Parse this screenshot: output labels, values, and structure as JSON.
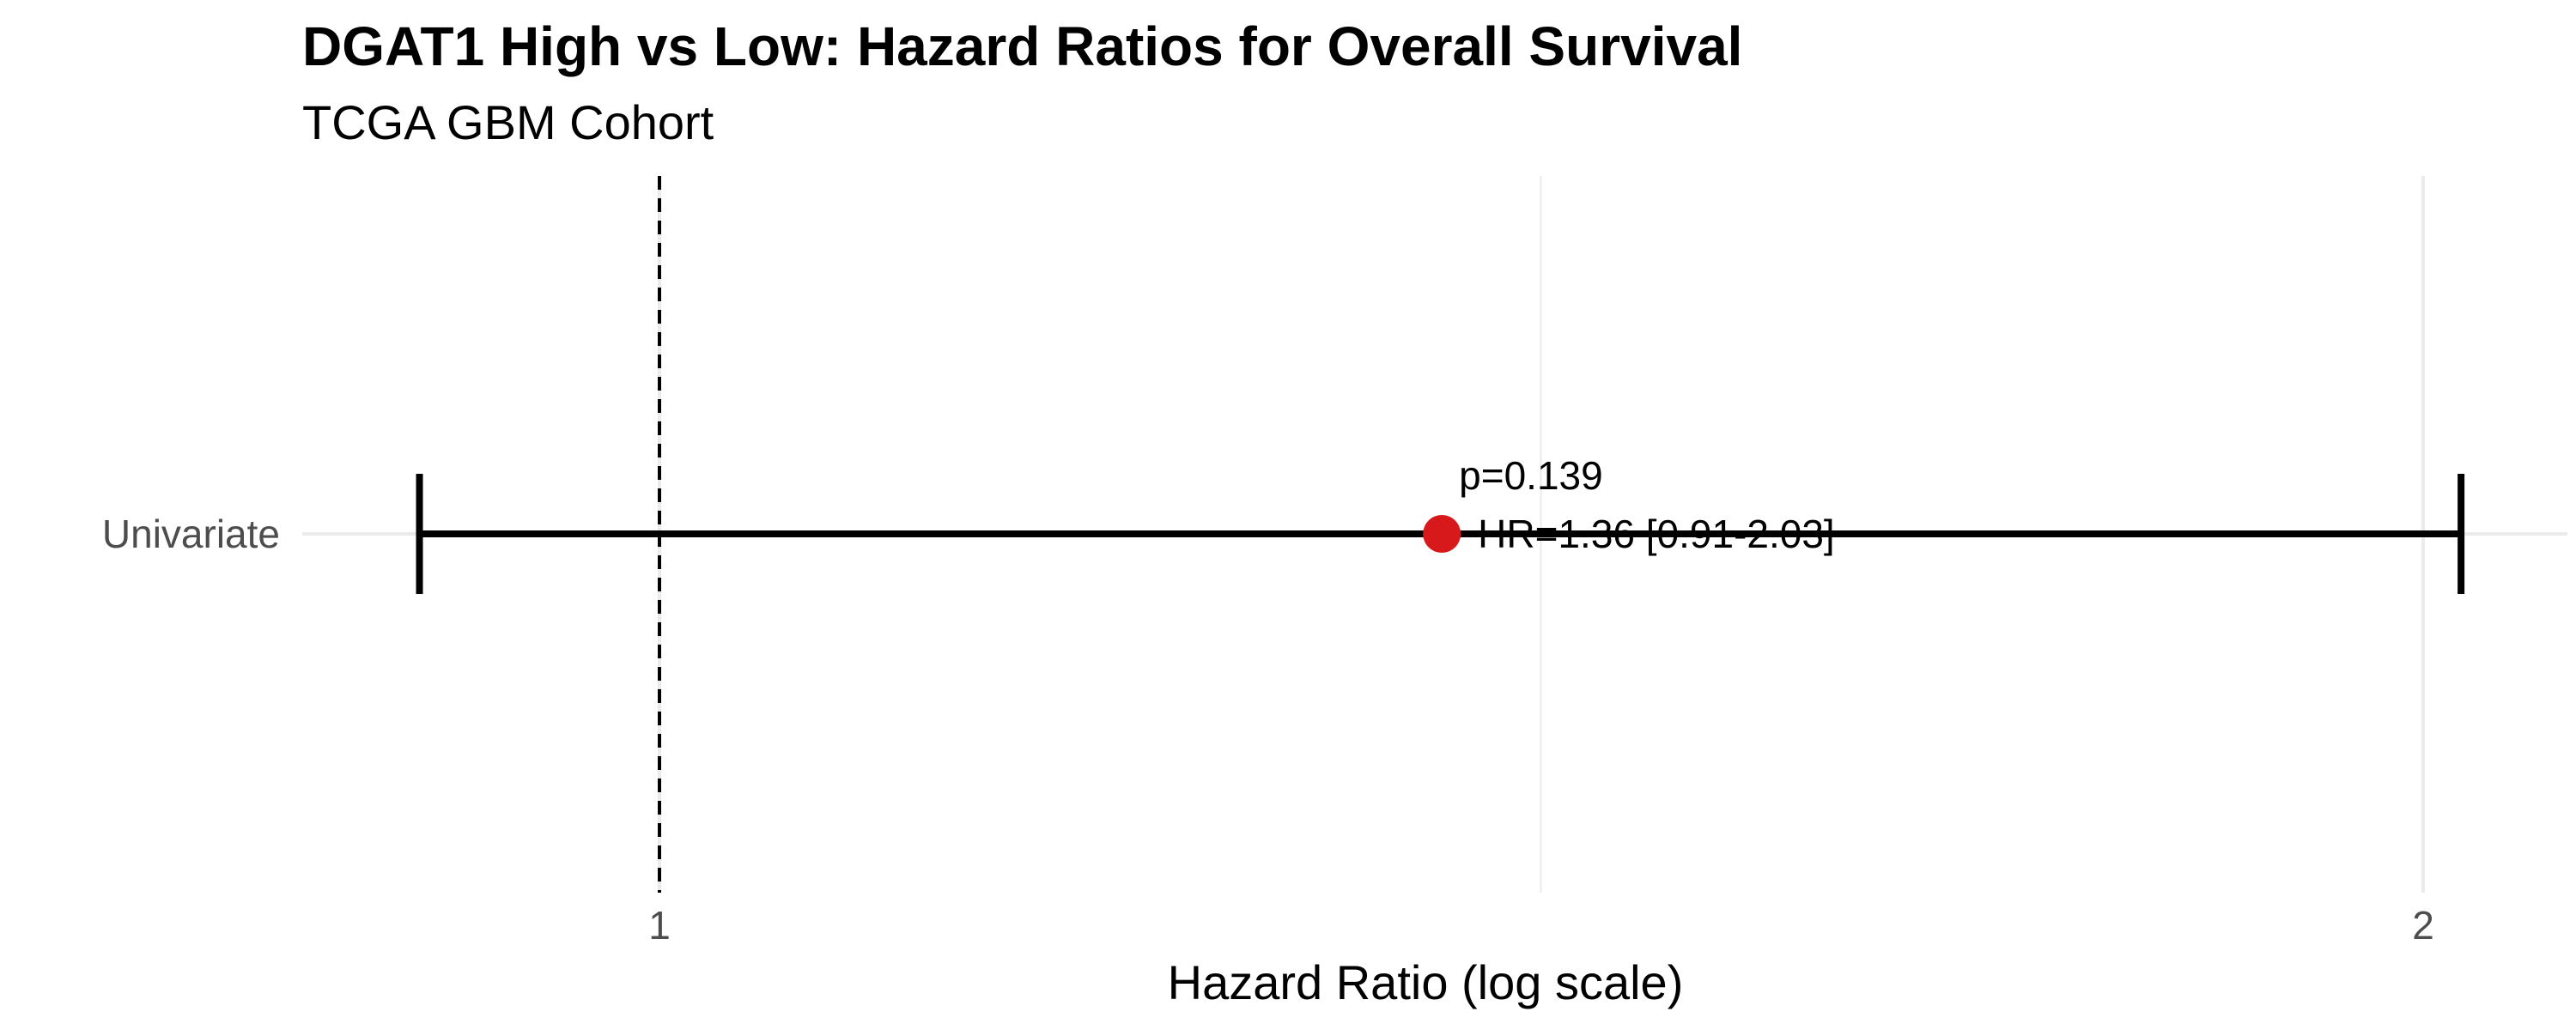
{
  "chart_data": {
    "type": "forest",
    "title": "DGAT1 High vs Low: Hazard Ratios for Overall Survival",
    "subtitle": "TCGA GBM Cohort",
    "xlabel": "Hazard Ratio (log scale)",
    "x_scale": "log",
    "xlim": [
      0.8,
      2.15
    ],
    "x_ticks": [
      1,
      2
    ],
    "x_tick_labels": [
      "1",
      "2"
    ],
    "minor_gridline_at": 1.414,
    "reference_line": 1,
    "grid": true,
    "rows": [
      {
        "label": "Univariate",
        "hr": 1.36,
        "ci_lower": 0.91,
        "ci_upper": 2.03,
        "hr_label": "HR=1.36 [0.91-2.03]",
        "p_label": "p=0.139"
      }
    ],
    "colors": {
      "point": "#d7191c",
      "errorbar": "#000000",
      "reference": "#000000",
      "grid": "#ebebeb"
    }
  }
}
